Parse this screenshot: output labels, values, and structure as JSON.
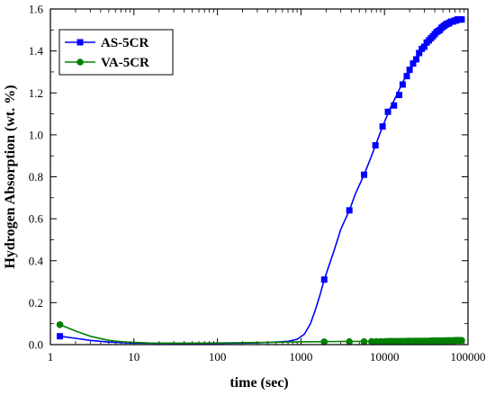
{
  "chart_data": {
    "type": "scatter",
    "xlabel": "time (sec)",
    "ylabel": "Hydrogen Absorption (wt. %)",
    "x_scale": "log",
    "xlim": [
      1,
      100000
    ],
    "ylim": [
      0,
      1.6
    ],
    "x_ticks": [
      1,
      10,
      100,
      1000,
      10000,
      100000
    ],
    "x_tick_labels": [
      "1",
      "10",
      "100",
      "1000",
      "10000",
      "100000"
    ],
    "y_ticks": [
      0,
      0.2,
      0.4,
      0.6,
      0.8,
      1.0,
      1.2,
      1.4,
      1.6
    ],
    "y_tick_labels": [
      "0.0",
      "0.2",
      "0.4",
      "0.6",
      "0.8",
      "1.0",
      "1.2",
      "1.4",
      "1.6"
    ],
    "grid": false,
    "legend_position": "top-left",
    "series": [
      {
        "name": "AS-5CR",
        "color": "#0000ff",
        "marker": "square",
        "curve": [
          [
            1.3,
            0.04
          ],
          [
            2,
            0.03
          ],
          [
            3,
            0.02
          ],
          [
            5,
            0.012
          ],
          [
            10,
            0.007
          ],
          [
            30,
            0.006
          ],
          [
            100,
            0.006
          ],
          [
            300,
            0.008
          ],
          [
            500,
            0.012
          ],
          [
            700,
            0.016
          ],
          [
            900,
            0.025
          ],
          [
            1100,
            0.05
          ],
          [
            1300,
            0.1
          ],
          [
            1500,
            0.17
          ],
          [
            1700,
            0.24
          ],
          [
            1900,
            0.31
          ],
          [
            2500,
            0.45
          ],
          [
            3000,
            0.55
          ],
          [
            3800,
            0.64
          ],
          [
            4500,
            0.72
          ],
          [
            5700,
            0.81
          ],
          [
            7000,
            0.9
          ],
          [
            7800,
            0.95
          ],
          [
            9500,
            1.04
          ],
          [
            11500,
            1.12
          ],
          [
            14000,
            1.19
          ],
          [
            17000,
            1.26
          ],
          [
            21000,
            1.33
          ],
          [
            26000,
            1.39
          ],
          [
            33000,
            1.44
          ],
          [
            42000,
            1.48
          ],
          [
            55000,
            1.52
          ],
          [
            70000,
            1.545
          ],
          [
            85000,
            1.55
          ]
        ],
        "points": [
          [
            1.3,
            0.04
          ],
          [
            1900,
            0.31
          ],
          [
            3800,
            0.64
          ],
          [
            5700,
            0.81
          ],
          [
            7800,
            0.95
          ],
          [
            9500,
            1.04
          ],
          [
            11000,
            1.11
          ],
          [
            13000,
            1.14
          ],
          [
            15000,
            1.19
          ],
          [
            16500,
            1.24
          ],
          [
            18500,
            1.28
          ],
          [
            20000,
            1.31
          ],
          [
            22000,
            1.34
          ],
          [
            24000,
            1.36
          ],
          [
            26000,
            1.39
          ],
          [
            28000,
            1.41
          ],
          [
            30000,
            1.42
          ],
          [
            32000,
            1.44
          ],
          [
            34000,
            1.45
          ],
          [
            36000,
            1.46
          ],
          [
            38000,
            1.47
          ],
          [
            40000,
            1.48
          ],
          [
            42000,
            1.49
          ],
          [
            44000,
            1.495
          ],
          [
            46000,
            1.5
          ],
          [
            48000,
            1.51
          ],
          [
            50000,
            1.515
          ],
          [
            52000,
            1.52
          ],
          [
            54000,
            1.525
          ],
          [
            56000,
            1.53
          ],
          [
            58000,
            1.53
          ],
          [
            60000,
            1.535
          ],
          [
            63000,
            1.54
          ],
          [
            66000,
            1.54
          ],
          [
            69000,
            1.545
          ],
          [
            72000,
            1.545
          ],
          [
            75000,
            1.55
          ],
          [
            78000,
            1.55
          ],
          [
            81000,
            1.55
          ],
          [
            84000,
            1.55
          ]
        ]
      },
      {
        "name": "VA-5CR",
        "color": "#008000",
        "marker": "circle",
        "curve": [
          [
            1.3,
            0.095
          ],
          [
            2,
            0.065
          ],
          [
            3,
            0.04
          ],
          [
            5,
            0.02
          ],
          [
            8,
            0.012
          ],
          [
            15,
            0.008
          ],
          [
            40,
            0.007
          ],
          [
            100,
            0.008
          ],
          [
            300,
            0.01
          ],
          [
            1000,
            0.013
          ],
          [
            3000,
            0.015
          ],
          [
            10000,
            0.016
          ],
          [
            30000,
            0.017
          ],
          [
            85000,
            0.02
          ]
        ],
        "points": [
          [
            1.3,
            0.095
          ],
          [
            1900,
            0.013
          ],
          [
            3800,
            0.014
          ],
          [
            5700,
            0.014
          ],
          [
            7000,
            0.015
          ],
          [
            8000,
            0.015
          ],
          [
            9000,
            0.015
          ],
          [
            10000,
            0.015
          ],
          [
            11000,
            0.016
          ],
          [
            12000,
            0.016
          ],
          [
            13000,
            0.016
          ],
          [
            14000,
            0.016
          ],
          [
            15000,
            0.016
          ],
          [
            16000,
            0.016
          ],
          [
            17000,
            0.016
          ],
          [
            18000,
            0.016
          ],
          [
            19000,
            0.017
          ],
          [
            20000,
            0.017
          ],
          [
            22000,
            0.017
          ],
          [
            24000,
            0.017
          ],
          [
            26000,
            0.017
          ],
          [
            28000,
            0.017
          ],
          [
            30000,
            0.017
          ],
          [
            32000,
            0.017
          ],
          [
            34000,
            0.017
          ],
          [
            36000,
            0.018
          ],
          [
            38000,
            0.018
          ],
          [
            40000,
            0.018
          ],
          [
            42000,
            0.018
          ],
          [
            44000,
            0.018
          ],
          [
            46000,
            0.018
          ],
          [
            48000,
            0.018
          ],
          [
            50000,
            0.018
          ],
          [
            52000,
            0.018
          ],
          [
            54000,
            0.019
          ],
          [
            56000,
            0.019
          ],
          [
            58000,
            0.019
          ],
          [
            60000,
            0.019
          ],
          [
            62000,
            0.019
          ],
          [
            64000,
            0.019
          ],
          [
            66000,
            0.019
          ],
          [
            68000,
            0.019
          ],
          [
            70000,
            0.02
          ],
          [
            72000,
            0.02
          ],
          [
            74000,
            0.02
          ],
          [
            76000,
            0.02
          ],
          [
            78000,
            0.02
          ],
          [
            80000,
            0.02
          ],
          [
            82000,
            0.02
          ],
          [
            84000,
            0.02
          ]
        ]
      }
    ]
  }
}
